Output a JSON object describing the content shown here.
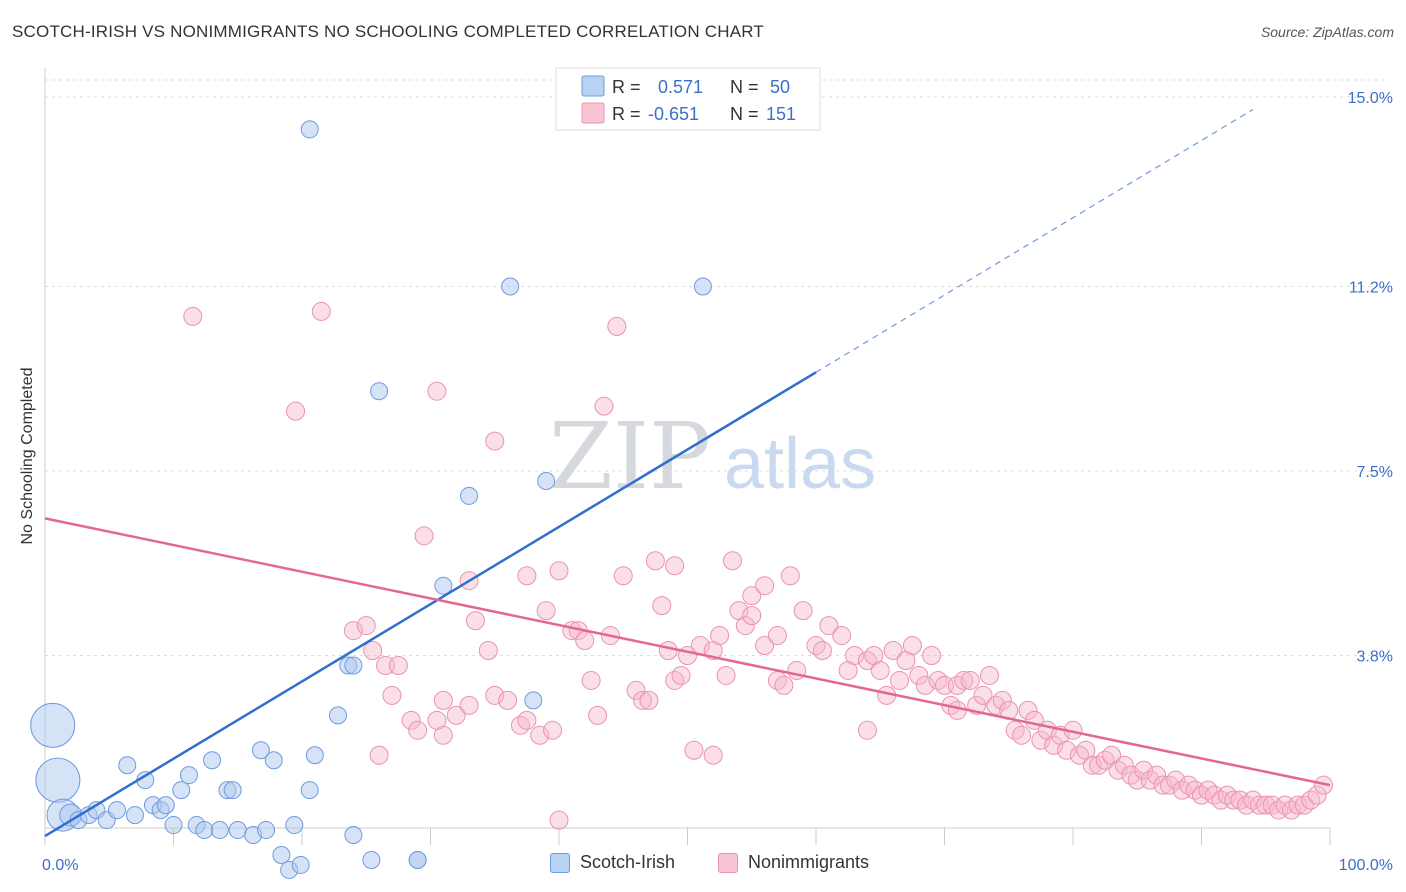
{
  "title": "SCOTCH-IRISH VS NONIMMIGRANTS NO SCHOOLING COMPLETED CORRELATION CHART",
  "source": "Source: ZipAtlas.com",
  "watermark": {
    "zip": "ZIP",
    "atlas": "atlas"
  },
  "legend": {
    "r_label": "R =",
    "n_label": "N =",
    "rows": [
      {
        "r": "0.571",
        "n": "50",
        "color": "#aec8ee",
        "stroke": "#5a8fd8"
      },
      {
        "r": "-0.651",
        "n": "151",
        "color": "#f7b9cb",
        "stroke": "#e882a3"
      }
    ]
  },
  "bottom_legend": [
    "Scotch-Irish",
    "Nonimmigrants"
  ],
  "chart_data": {
    "type": "scatter",
    "title": "SCOTCH-IRISH VS NONIMMIGRANTS NO SCHOOLING COMPLETED CORRELATION CHART",
    "xlabel": "",
    "ylabel": "No Schooling Completed",
    "xlim": [
      0,
      100
    ],
    "ylim": [
      0,
      15
    ],
    "x_tick_labels": [
      "0.0%",
      "100.0%"
    ],
    "y_ticks": [
      3.8,
      7.5,
      11.2,
      15.0
    ],
    "y_tick_labels": [
      "3.8%",
      "7.5%",
      "11.2%",
      "15.0%"
    ],
    "grid": true,
    "legend_placement": "top-center",
    "colors": {
      "scotch_irish": "#5a8fd8",
      "nonimmigrants": "#e8779c",
      "trend_blue": "#2f6fcd",
      "trend_pink": "#e2688f"
    },
    "series": [
      {
        "name": "Scotch-Irish",
        "trend": {
          "x0": 0,
          "y0": 0.18,
          "x1": 60,
          "y1": 9.48,
          "dash_to_x": 94,
          "dash_to_y": 14.75
        },
        "points": [
          [
            0.6,
            2.4,
            22
          ],
          [
            1.0,
            1.3,
            22
          ],
          [
            1.4,
            0.6,
            16
          ],
          [
            2.0,
            0.6,
            11
          ],
          [
            2.6,
            0.5,
            10
          ],
          [
            3.4,
            0.6,
            10
          ],
          [
            4.0,
            0.7,
            10
          ],
          [
            4.8,
            0.5,
            10
          ],
          [
            5.6,
            0.7,
            10
          ],
          [
            6.4,
            1.6,
            10
          ],
          [
            7.0,
            0.6,
            10
          ],
          [
            7.8,
            1.3,
            10
          ],
          [
            8.4,
            0.8,
            10
          ],
          [
            9.0,
            0.7,
            10
          ],
          [
            9.4,
            0.8,
            10
          ],
          [
            10.0,
            0.4,
            10
          ],
          [
            10.6,
            1.1,
            10
          ],
          [
            11.2,
            1.4,
            10
          ],
          [
            11.8,
            0.4,
            10
          ],
          [
            12.4,
            0.3,
            10
          ],
          [
            13.0,
            1.7,
            10
          ],
          [
            13.6,
            0.3,
            10
          ],
          [
            14.2,
            1.1,
            10
          ],
          [
            14.6,
            1.1,
            10
          ],
          [
            15.0,
            0.3,
            10
          ],
          [
            16.2,
            0.2,
            10
          ],
          [
            16.8,
            1.9,
            10
          ],
          [
            17.2,
            0.3,
            10
          ],
          [
            17.8,
            1.7,
            10
          ],
          [
            18.4,
            -0.2,
            10
          ],
          [
            19.0,
            -0.5,
            10
          ],
          [
            19.4,
            0.4,
            10
          ],
          [
            19.9,
            -0.4,
            10
          ],
          [
            20.6,
            1.1,
            10
          ],
          [
            21.0,
            1.8,
            10
          ],
          [
            24.0,
            0.2,
            10
          ],
          [
            20.6,
            14.35,
            10
          ],
          [
            29.0,
            -0.3,
            10
          ],
          [
            22.8,
            2.6,
            10
          ],
          [
            23.6,
            3.6,
            10
          ],
          [
            24.0,
            3.6,
            10
          ],
          [
            25.4,
            -0.3,
            10
          ],
          [
            26.0,
            9.1,
            10
          ],
          [
            29.0,
            -0.3,
            10
          ],
          [
            31.0,
            5.2,
            10
          ],
          [
            33.0,
            7.0,
            10
          ],
          [
            36.2,
            11.2,
            10
          ],
          [
            38.0,
            2.9,
            10
          ],
          [
            39.0,
            7.3,
            10
          ],
          [
            51.2,
            11.2,
            10
          ]
        ]
      },
      {
        "name": "Nonimmigrants",
        "trend": {
          "x0": 0,
          "y0": 6.55,
          "x1": 100,
          "y1": 1.2
        },
        "points": [
          [
            11.5,
            10.6
          ],
          [
            21.5,
            10.7
          ],
          [
            19.5,
            8.7
          ],
          [
            30.5,
            9.1
          ],
          [
            35.0,
            8.1
          ],
          [
            44.5,
            10.4
          ],
          [
            43.5,
            8.8
          ],
          [
            29.5,
            6.2
          ],
          [
            33.0,
            5.3
          ],
          [
            37.5,
            5.4
          ],
          [
            40.0,
            5.5
          ],
          [
            45.0,
            5.4
          ],
          [
            47.5,
            5.7
          ],
          [
            53.5,
            5.7
          ],
          [
            58.0,
            5.4
          ],
          [
            55.0,
            5.0
          ],
          [
            24.0,
            4.3
          ],
          [
            25.0,
            4.4
          ],
          [
            25.5,
            3.9
          ],
          [
            26.5,
            3.6
          ],
          [
            27.0,
            3.0
          ],
          [
            27.5,
            3.6
          ],
          [
            26.0,
            1.8
          ],
          [
            28.5,
            2.5
          ],
          [
            29.0,
            2.3
          ],
          [
            31.0,
            2.2
          ],
          [
            30.5,
            2.5
          ],
          [
            32.0,
            2.6
          ],
          [
            33.0,
            2.8
          ],
          [
            34.5,
            3.9
          ],
          [
            35.0,
            3.0
          ],
          [
            36.0,
            2.9
          ],
          [
            37.0,
            2.4
          ],
          [
            37.5,
            2.5
          ],
          [
            38.5,
            2.2
          ],
          [
            39.5,
            2.3
          ],
          [
            40.0,
            0.5
          ],
          [
            41.0,
            4.3
          ],
          [
            41.5,
            4.3
          ],
          [
            42.0,
            4.1
          ],
          [
            42.5,
            3.3
          ],
          [
            43.0,
            2.6
          ],
          [
            44.0,
            4.2
          ],
          [
            46.0,
            3.1
          ],
          [
            46.5,
            2.9
          ],
          [
            47.0,
            2.9
          ],
          [
            48.0,
            4.8
          ],
          [
            48.5,
            3.9
          ],
          [
            49.0,
            3.3
          ],
          [
            49.5,
            3.4
          ],
          [
            50.0,
            3.8
          ],
          [
            50.5,
            1.9
          ],
          [
            51.0,
            4.0
          ],
          [
            52.0,
            3.9
          ],
          [
            52.5,
            4.2
          ],
          [
            53.0,
            3.4
          ],
          [
            54.0,
            4.7
          ],
          [
            54.5,
            4.4
          ],
          [
            55.0,
            4.6
          ],
          [
            56.0,
            4.0
          ],
          [
            57.0,
            3.3
          ],
          [
            57.5,
            3.2
          ],
          [
            58.5,
            3.5
          ],
          [
            59.0,
            4.7
          ],
          [
            60.0,
            4.0
          ],
          [
            60.5,
            3.9
          ],
          [
            61.0,
            4.4
          ],
          [
            62.0,
            4.2
          ],
          [
            62.5,
            3.5
          ],
          [
            63.0,
            3.8
          ],
          [
            64.0,
            3.7
          ],
          [
            64.5,
            3.8
          ],
          [
            65.0,
            3.5
          ],
          [
            65.5,
            3.0
          ],
          [
            66.0,
            3.9
          ],
          [
            66.5,
            3.3
          ],
          [
            67.0,
            3.7
          ],
          [
            67.5,
            4.0
          ],
          [
            68.0,
            3.4
          ],
          [
            68.5,
            3.2
          ],
          [
            69.0,
            3.8
          ],
          [
            69.5,
            3.3
          ],
          [
            70.0,
            3.2
          ],
          [
            70.5,
            2.8
          ],
          [
            71.0,
            3.2
          ],
          [
            71.5,
            3.3
          ],
          [
            72.0,
            3.3
          ],
          [
            72.5,
            2.8
          ],
          [
            73.0,
            3.0
          ],
          [
            73.5,
            3.4
          ],
          [
            74.0,
            2.8
          ],
          [
            74.5,
            2.9
          ],
          [
            75.0,
            2.7
          ],
          [
            75.5,
            2.3
          ],
          [
            76.0,
            2.2
          ],
          [
            76.5,
            2.7
          ],
          [
            77.0,
            2.5
          ],
          [
            77.5,
            2.1
          ],
          [
            78.0,
            2.3
          ],
          [
            78.5,
            2.0
          ],
          [
            79.0,
            2.2
          ],
          [
            79.5,
            1.9
          ],
          [
            80.0,
            2.3
          ],
          [
            80.5,
            1.8
          ],
          [
            81.0,
            1.9
          ],
          [
            81.5,
            1.6
          ],
          [
            82.0,
            1.6
          ],
          [
            82.5,
            1.7
          ],
          [
            83.0,
            1.8
          ],
          [
            83.5,
            1.5
          ],
          [
            84.0,
            1.6
          ],
          [
            84.5,
            1.4
          ],
          [
            85.0,
            1.3
          ],
          [
            85.5,
            1.5
          ],
          [
            86.0,
            1.3
          ],
          [
            86.5,
            1.4
          ],
          [
            87.0,
            1.2
          ],
          [
            87.5,
            1.2
          ],
          [
            88.0,
            1.3
          ],
          [
            88.5,
            1.1
          ],
          [
            89.0,
            1.2
          ],
          [
            89.5,
            1.1
          ],
          [
            90.0,
            1.0
          ],
          [
            90.5,
            1.1
          ],
          [
            91.0,
            1.0
          ],
          [
            91.5,
            0.9
          ],
          [
            92.0,
            1.0
          ],
          [
            92.5,
            0.9
          ],
          [
            93.0,
            0.9
          ],
          [
            93.5,
            0.8
          ],
          [
            94.0,
            0.9
          ],
          [
            94.5,
            0.8
          ],
          [
            95.0,
            0.8
          ],
          [
            95.5,
            0.8
          ],
          [
            96.0,
            0.7
          ],
          [
            96.5,
            0.8
          ],
          [
            97.0,
            0.7
          ],
          [
            97.5,
            0.8
          ],
          [
            98.0,
            0.8
          ],
          [
            98.5,
            0.9
          ],
          [
            99.0,
            1.0
          ],
          [
            99.5,
            1.2
          ],
          [
            31.0,
            2.9
          ],
          [
            33.5,
            4.5
          ],
          [
            39.0,
            4.7
          ],
          [
            57.0,
            4.2
          ],
          [
            64.0,
            2.3
          ],
          [
            71.0,
            2.7
          ],
          [
            56.0,
            5.2
          ],
          [
            49.0,
            5.6
          ],
          [
            52.0,
            1.8
          ]
        ]
      }
    ]
  }
}
